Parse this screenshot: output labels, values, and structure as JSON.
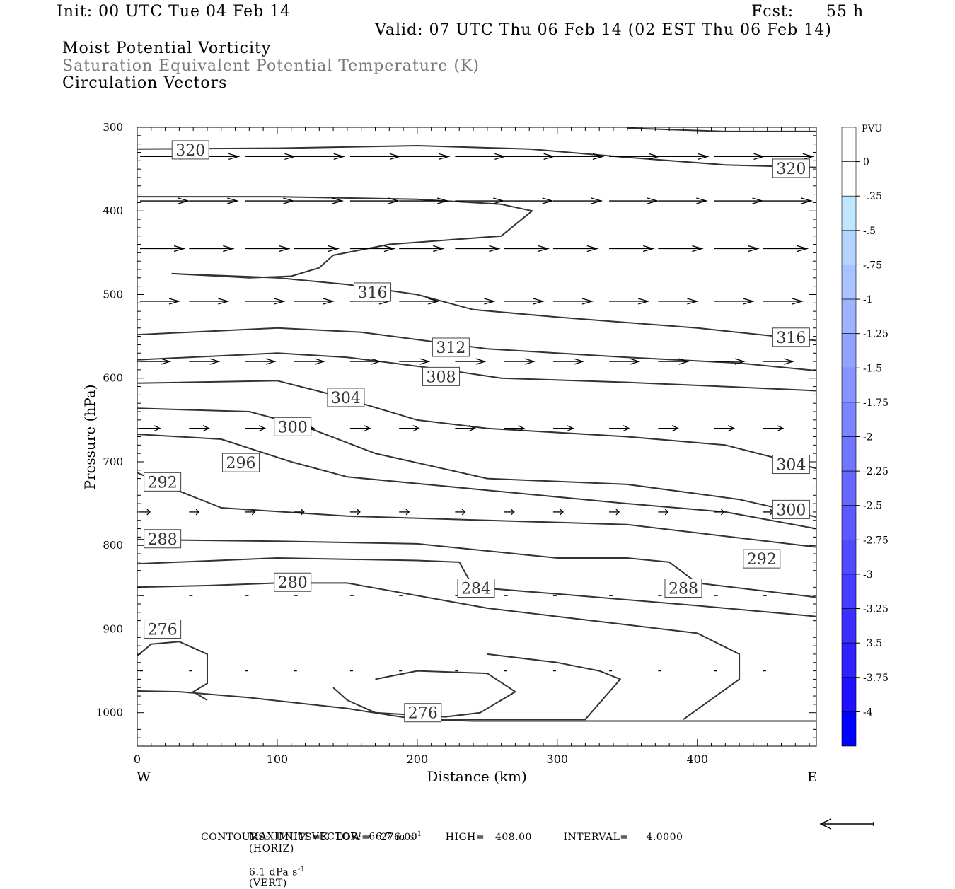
{
  "header": {
    "init": "Init: 00 UTC Tue 04 Feb 14",
    "fcst_label": "Fcst:",
    "fcst_value": "55 h",
    "valid": "Valid: 07 UTC Thu 06 Feb 14 (02 EST Thu 06 Feb 14)",
    "field1": "Moist Potential Vorticity",
    "field2": "Saturation Equivalent Potential Temperature (K)",
    "field3": "Circulation Vectors"
  },
  "colorbar": {
    "unit": "PVU",
    "labels": [
      "0",
      "-.25",
      "-.5",
      "-.75",
      "-1",
      "-1.25",
      "-1.5",
      "-1.75",
      "-2",
      "-2.25",
      "-2.5",
      "-2.75",
      "-3",
      "-3.25",
      "-3.5",
      "-3.75",
      "-4"
    ],
    "colors": [
      "#ffffff",
      "#ffffff",
      "#bfe6ff",
      "#b3d4ff",
      "#a8c3ff",
      "#9db3ff",
      "#92a3ff",
      "#8794ff",
      "#7c85ff",
      "#7176ff",
      "#6667ff",
      "#5b59ff",
      "#504bff",
      "#453dff",
      "#3a2fff",
      "#2f22ff",
      "#1f10ff",
      "#0000ff"
    ]
  },
  "footer": {
    "max_vector_prefix": "MAXIMUM VECTOR:  66.7 m s",
    "max_vector_horiz": "(HORIZ)",
    "max_vector_vert_prefix": "6.1 dPa s",
    "max_vector_vert": "(VERT)",
    "exp": "-1",
    "contours": "CONTOURS:  UNITS=K  LOW=   276.00        HIGH=   408.00         INTERVAL=     4.0000"
  },
  "chart_data": {
    "type": "contour",
    "xlabel": "Distance (km)",
    "ylabel": "Pressure (hPa)",
    "xlim": [
      0,
      485
    ],
    "ylim": [
      1040,
      300
    ],
    "x_ticks": [
      0,
      100,
      200,
      300,
      400
    ],
    "y_ticks": [
      300,
      400,
      500,
      600,
      700,
      800,
      900,
      1000
    ],
    "x_end_labels": {
      "left": "W",
      "right": "E"
    },
    "contours": [
      {
        "level": 320,
        "points": [
          [
            0,
            326
          ],
          [
            100,
            325
          ],
          [
            200,
            322
          ],
          [
            280,
            326
          ],
          [
            350,
            336
          ],
          [
            420,
            345
          ],
          [
            485,
            348
          ]
        ],
        "labels": [
          [
            38,
            327
          ],
          [
            467,
            349
          ]
        ]
      },
      {
        "level": 320,
        "points": [
          [
            350,
            301
          ],
          [
            420,
            305
          ],
          [
            485,
            305
          ]
        ],
        "labels": []
      },
      {
        "level": 316,
        "points": [
          [
            0,
            383
          ],
          [
            100,
            383
          ],
          [
            200,
            386
          ],
          [
            260,
            392
          ],
          [
            282,
            400
          ],
          [
            260,
            430
          ],
          [
            180,
            440
          ],
          [
            140,
            453
          ],
          [
            130,
            468
          ],
          [
            110,
            478
          ],
          [
            80,
            480
          ],
          [
            60,
            478
          ],
          [
            25,
            475
          ],
          [
            100,
            480
          ],
          [
            150,
            488
          ],
          [
            200,
            500
          ],
          [
            240,
            518
          ],
          [
            300,
            527
          ],
          [
            400,
            540
          ],
          [
            485,
            555
          ]
        ],
        "labels": [
          [
            168,
            497
          ],
          [
            467,
            551
          ]
        ]
      },
      {
        "level": 312,
        "points": [
          [
            0,
            548
          ],
          [
            100,
            540
          ],
          [
            160,
            545
          ],
          [
            250,
            565
          ],
          [
            350,
            575
          ],
          [
            430,
            582
          ],
          [
            485,
            591
          ]
        ],
        "labels": [
          [
            224,
            563
          ]
        ]
      },
      {
        "level": 308,
        "points": [
          [
            0,
            578
          ],
          [
            100,
            570
          ],
          [
            150,
            575
          ],
          [
            220,
            590
          ],
          [
            260,
            600
          ],
          [
            350,
            605
          ],
          [
            420,
            610
          ],
          [
            485,
            615
          ]
        ],
        "labels": [
          [
            217,
            598
          ]
        ]
      },
      {
        "level": 304,
        "points": [
          [
            0,
            606
          ],
          [
            100,
            603
          ],
          [
            140,
            620
          ],
          [
            200,
            650
          ],
          [
            250,
            660
          ],
          [
            350,
            670
          ],
          [
            420,
            680
          ],
          [
            485,
            708
          ]
        ],
        "labels": [
          [
            149,
            623
          ],
          [
            467,
            703
          ]
        ]
      },
      {
        "level": 300,
        "points": [
          [
            0,
            636
          ],
          [
            80,
            640
          ],
          [
            120,
            658
          ],
          [
            170,
            690
          ],
          [
            250,
            720
          ],
          [
            350,
            727
          ],
          [
            430,
            745
          ],
          [
            485,
            766
          ]
        ],
        "labels": [
          [
            111,
            658
          ],
          [
            467,
            757
          ]
        ]
      },
      {
        "level": 296,
        "points": [
          [
            0,
            667
          ],
          [
            60,
            673
          ],
          [
            110,
            700
          ],
          [
            150,
            718
          ],
          [
            250,
            734
          ],
          [
            350,
            750
          ],
          [
            420,
            760
          ],
          [
            485,
            780
          ]
        ],
        "labels": [
          [
            74,
            701
          ]
        ]
      },
      {
        "level": 292,
        "points": [
          [
            0,
            713
          ],
          [
            30,
            735
          ],
          [
            60,
            755
          ],
          [
            150,
            765
          ],
          [
            250,
            770
          ],
          [
            350,
            775
          ],
          [
            400,
            785
          ],
          [
            485,
            802
          ]
        ],
        "labels": [
          [
            18,
            724
          ],
          [
            446,
            816
          ]
        ]
      },
      {
        "level": 288,
        "points": [
          [
            0,
            793
          ],
          [
            100,
            795
          ],
          [
            200,
            798
          ],
          [
            300,
            815
          ],
          [
            350,
            815
          ],
          [
            380,
            820
          ],
          [
            400,
            845
          ],
          [
            485,
            862
          ]
        ],
        "labels": [
          [
            18,
            792
          ],
          [
            390,
            851
          ]
        ]
      },
      {
        "level": 284,
        "points": [
          [
            0,
            822
          ],
          [
            100,
            815
          ],
          [
            200,
            818
          ],
          [
            230,
            820
          ],
          [
            240,
            850
          ],
          [
            300,
            858
          ],
          [
            400,
            872
          ],
          [
            485,
            885
          ]
        ],
        "labels": [
          [
            242,
            851
          ]
        ]
      },
      {
        "level": 280,
        "points": [
          [
            0,
            850
          ],
          [
            50,
            848
          ],
          [
            100,
            845
          ],
          [
            150,
            845
          ],
          [
            200,
            860
          ],
          [
            250,
            875
          ],
          [
            300,
            885
          ],
          [
            350,
            895
          ],
          [
            400,
            905
          ],
          [
            430,
            930
          ],
          [
            430,
            960
          ],
          [
            390,
            1008
          ]
        ],
        "labels": [
          [
            111,
            844
          ]
        ]
      },
      {
        "level": 276,
        "points": [
          [
            0,
            932
          ],
          [
            10,
            918
          ],
          [
            30,
            915
          ],
          [
            50,
            930
          ],
          [
            50,
            965
          ],
          [
            40,
            975
          ],
          [
            50,
            985
          ]
        ],
        "labels": [
          [
            18,
            900
          ]
        ]
      },
      {
        "level": 276,
        "points": [
          [
            170,
            960
          ],
          [
            200,
            950
          ],
          [
            250,
            953
          ],
          [
            270,
            975
          ],
          [
            245,
            1000
          ],
          [
            220,
            1005
          ],
          [
            170,
            1000
          ],
          [
            150,
            985
          ],
          [
            140,
            970
          ]
        ],
        "labels": [
          [
            204,
            1000
          ]
        ]
      },
      {
        "level": 280,
        "points": [
          [
            0,
            974
          ],
          [
            30,
            975
          ],
          [
            80,
            982
          ],
          [
            150,
            995
          ],
          [
            200,
            1008
          ],
          [
            240,
            1010
          ],
          [
            280,
            1010
          ],
          [
            320,
            1010
          ],
          [
            400,
            1010
          ],
          [
            485,
            1010
          ]
        ],
        "labels": []
      },
      {
        "level": 284,
        "points": [
          [
            200,
            1008
          ],
          [
            300,
            1008
          ],
          [
            320,
            1008
          ],
          [
            345,
            960
          ],
          [
            330,
            950
          ],
          [
            300,
            940
          ],
          [
            250,
            930
          ]
        ],
        "labels": []
      }
    ],
    "vectors": {
      "rows": [
        {
          "p": 335,
          "len": 70,
          "xs": [
            0,
            35,
            75,
            110,
            150,
            185,
            225,
            260,
            295,
            335,
            370,
            410,
            445
          ]
        },
        {
          "p": 388,
          "len": 68,
          "xs": [
            0,
            35,
            75,
            110,
            150,
            185,
            225,
            260,
            295,
            335,
            370,
            410,
            445
          ]
        },
        {
          "p": 445,
          "len": 62,
          "xs": [
            0,
            35,
            75,
            110,
            150,
            185,
            225,
            260,
            295,
            335,
            370,
            410,
            445
          ]
        },
        {
          "p": 508,
          "len": 55,
          "xs": [
            0,
            35,
            75,
            110,
            150,
            185,
            225,
            260,
            295,
            335,
            370,
            410,
            445
          ]
        },
        {
          "p": 580,
          "len": 42,
          "xs": [
            0,
            35,
            75,
            110,
            150,
            185,
            225,
            260,
            295,
            335,
            370,
            410,
            445
          ]
        },
        {
          "p": 660,
          "len": 28,
          "xs": [
            0,
            35,
            75,
            110,
            150,
            185,
            225,
            260,
            295,
            335,
            370,
            410,
            445
          ]
        },
        {
          "p": 760,
          "len": 14,
          "xs": [
            0,
            35,
            75,
            110,
            150,
            185,
            225,
            260,
            295,
            335,
            370,
            410,
            445
          ]
        },
        {
          "p": 860,
          "len": 5,
          "xs": [
            0,
            35,
            75,
            110,
            150,
            185,
            225,
            260,
            295,
            335,
            370,
            410,
            445
          ]
        },
        {
          "p": 950,
          "len": 4,
          "xs": [
            0,
            35,
            75,
            110,
            150,
            185,
            225,
            260,
            295,
            335,
            370,
            410,
            445
          ]
        }
      ]
    }
  }
}
